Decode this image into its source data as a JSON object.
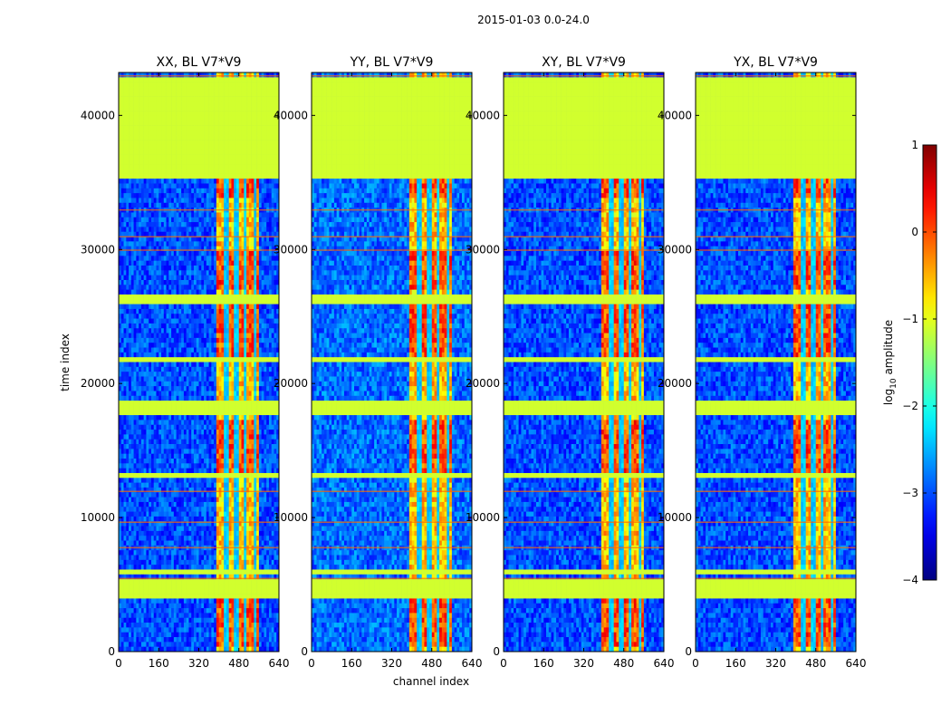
{
  "figure": {
    "suptitle": "2015-01-03 0.0-24.0"
  },
  "chart_data": {
    "type": "heatmap",
    "suptitle": "2015-01-03 0.0-24.0",
    "xlabel": "channel index",
    "ylabel": "time index",
    "xlim": [
      0,
      640
    ],
    "ylim": [
      0,
      43200
    ],
    "x_ticks": [
      0,
      160,
      320,
      480,
      640
    ],
    "y_ticks": [
      0,
      10000,
      20000,
      30000,
      40000
    ],
    "colorscale": "jet",
    "colorbar": {
      "label": "log10 amplitude",
      "label_base": "log",
      "label_sub": "10",
      "label_rest": " amplitude",
      "range": [
        -4,
        1
      ],
      "ticks": [
        1,
        0,
        -1,
        -2,
        -3,
        -4
      ],
      "tick_labels": [
        "1",
        "0",
        "−1",
        "−2",
        "−3",
        "−4"
      ]
    },
    "panels": [
      {
        "title": "XX, BL V7*V9",
        "pol": "XX"
      },
      {
        "title": "YY, BL V7*V9",
        "pol": "YY"
      },
      {
        "title": "XY, BL V7*V9",
        "pol": "XY"
      },
      {
        "title": "YX, BL V7*V9",
        "pol": "YX"
      }
    ],
    "flagged_time_ranges": [
      [
        35300,
        42800
      ],
      [
        26000,
        26700
      ],
      [
        17500,
        18700
      ],
      [
        12900,
        13400
      ],
      [
        5700,
        6200
      ],
      [
        3800,
        5300
      ],
      [
        21700,
        22000
      ]
    ],
    "flagged_value": -1.1,
    "background_range_value": -2.9,
    "rfi_channel_range": [
      390,
      560
    ],
    "rfi_value_range": [
      -0.6,
      0.6
    ],
    "rfi_bright_time_ranges": [
      [
        34000,
        35300
      ],
      [
        27000,
        30000
      ],
      [
        22000,
        26000
      ],
      [
        13500,
        17300
      ],
      [
        200,
        3800
      ]
    ],
    "rfi_column_gaps": [
      430,
      470,
      505,
      545
    ]
  }
}
